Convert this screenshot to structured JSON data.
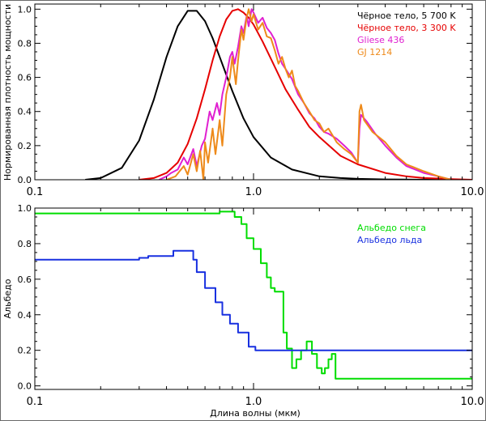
{
  "chart_data": [
    {
      "type": "line",
      "ylabel": "Нормированная плотность мощности",
      "xscale": "log",
      "xlim": [
        0.1,
        10.0
      ],
      "ylim": [
        0,
        1.03
      ],
      "x_ticks": [
        "0.1",
        "1.0",
        "10.0"
      ],
      "y_ticks": [
        "0.0",
        "0.2",
        "0.4",
        "0.6",
        "0.8",
        "1.0"
      ],
      "y_tick_values": [
        0,
        0.2,
        0.4,
        0.6,
        0.8,
        1.0
      ],
      "legend_position": "top-right",
      "series": [
        {
          "name": "Чёрное тело, 5 700 K",
          "color": "#000000",
          "x": [
            0.17,
            0.2,
            0.25,
            0.3,
            0.35,
            0.4,
            0.45,
            0.5,
            0.55,
            0.6,
            0.65,
            0.7,
            0.8,
            0.9,
            1.0,
            1.2,
            1.5,
            2.0,
            2.5,
            3.0,
            4.0,
            5.0,
            6.5,
            7.0
          ],
          "y": [
            0.0,
            0.01,
            0.07,
            0.23,
            0.47,
            0.72,
            0.9,
            0.99,
            0.99,
            0.93,
            0.83,
            0.72,
            0.52,
            0.36,
            0.25,
            0.13,
            0.06,
            0.02,
            0.01,
            0.005,
            0.002,
            0.001,
            0.0,
            0.0
          ]
        },
        {
          "name": "Чёрное тело, 3 300 K",
          "color": "#e60000",
          "x": [
            0.3,
            0.35,
            0.4,
            0.45,
            0.5,
            0.55,
            0.6,
            0.65,
            0.7,
            0.75,
            0.8,
            0.85,
            0.9,
            0.95,
            1.0,
            1.1,
            1.2,
            1.4,
            1.6,
            1.8,
            2.0,
            2.5,
            3.0,
            4.0,
            5.0,
            6.0,
            7.0,
            8.0,
            10.0
          ],
          "y": [
            0.0,
            0.01,
            0.04,
            0.1,
            0.21,
            0.36,
            0.53,
            0.7,
            0.84,
            0.94,
            0.99,
            1.0,
            0.98,
            0.95,
            0.91,
            0.81,
            0.71,
            0.53,
            0.41,
            0.31,
            0.25,
            0.14,
            0.09,
            0.04,
            0.02,
            0.01,
            0.007,
            0.004,
            0.0
          ]
        },
        {
          "name": "Gliese 436",
          "color": "#e020d0",
          "x": [
            0.37,
            0.4,
            0.42,
            0.45,
            0.48,
            0.5,
            0.53,
            0.55,
            0.58,
            0.6,
            0.63,
            0.65,
            0.68,
            0.7,
            0.72,
            0.75,
            0.78,
            0.8,
            0.82,
            0.85,
            0.88,
            0.9,
            0.93,
            0.95,
            0.98,
            1.0,
            1.05,
            1.1,
            1.15,
            1.2,
            1.25,
            1.3,
            1.35,
            1.4,
            1.45,
            1.5,
            1.6,
            1.7,
            1.8,
            1.9,
            2.0,
            2.1,
            2.2,
            2.4,
            2.6,
            2.8,
            3.0,
            3.05,
            3.1,
            3.3,
            3.6,
            4.0,
            4.5,
            5.0,
            6.0,
            7.0,
            8.0
          ],
          "y": [
            0.0,
            0.02,
            0.04,
            0.06,
            0.13,
            0.09,
            0.18,
            0.08,
            0.2,
            0.24,
            0.4,
            0.35,
            0.45,
            0.38,
            0.5,
            0.6,
            0.72,
            0.75,
            0.68,
            0.78,
            0.9,
            0.86,
            0.96,
            0.9,
            1.0,
            0.98,
            0.92,
            0.95,
            0.89,
            0.86,
            0.82,
            0.74,
            0.68,
            0.65,
            0.62,
            0.59,
            0.5,
            0.45,
            0.39,
            0.36,
            0.31,
            0.28,
            0.27,
            0.24,
            0.2,
            0.16,
            0.1,
            0.3,
            0.38,
            0.34,
            0.27,
            0.2,
            0.13,
            0.08,
            0.04,
            0.02,
            0.0
          ]
        },
        {
          "name": "GJ 1214",
          "color": "#ee8a1a",
          "x": [
            0.4,
            0.44,
            0.48,
            0.5,
            0.53,
            0.55,
            0.57,
            0.59,
            0.6,
            0.62,
            0.65,
            0.67,
            0.7,
            0.72,
            0.75,
            0.78,
            0.8,
            0.83,
            0.85,
            0.88,
            0.9,
            0.93,
            0.95,
            0.98,
            1.0,
            1.05,
            1.1,
            1.15,
            1.2,
            1.25,
            1.3,
            1.35,
            1.4,
            1.45,
            1.5,
            1.55,
            1.6,
            1.7,
            1.8,
            1.9,
            2.0,
            2.1,
            2.2,
            2.4,
            2.6,
            2.8,
            3.0,
            3.05,
            3.1,
            3.2,
            3.5,
            4.0,
            4.5,
            5.0,
            6.0,
            7.0,
            8.0
          ],
          "y": [
            0.0,
            0.02,
            0.08,
            0.03,
            0.15,
            0.05,
            0.17,
            0.0,
            0.22,
            0.1,
            0.3,
            0.15,
            0.35,
            0.2,
            0.5,
            0.6,
            0.72,
            0.56,
            0.7,
            0.88,
            0.82,
            0.95,
            1.0,
            0.93,
            0.97,
            0.88,
            0.92,
            0.84,
            0.83,
            0.76,
            0.68,
            0.72,
            0.65,
            0.6,
            0.64,
            0.55,
            0.52,
            0.45,
            0.4,
            0.35,
            0.33,
            0.28,
            0.3,
            0.22,
            0.18,
            0.15,
            0.1,
            0.4,
            0.44,
            0.35,
            0.28,
            0.22,
            0.14,
            0.09,
            0.05,
            0.02,
            0.0
          ]
        }
      ]
    },
    {
      "type": "line",
      "xlabel": "Длина волны (мкм)",
      "ylabel": "Альбедо",
      "xscale": "log",
      "xlim": [
        0.1,
        10.0
      ],
      "ylim": [
        -0.02,
        1.0
      ],
      "x_ticks": [
        "0.1",
        "1.0",
        "10.0"
      ],
      "y_ticks": [
        "0.0",
        "0.2",
        "0.4",
        "0.6",
        "0.8",
        "1.0"
      ],
      "y_tick_values": [
        0,
        0.2,
        0.4,
        0.6,
        0.8,
        1.0
      ],
      "legend_position": "top-right",
      "series": [
        {
          "name": "Альбедо снега",
          "color": "#00dd00",
          "x": [
            0.1,
            0.7,
            0.7,
            0.82,
            0.82,
            0.88,
            0.88,
            0.93,
            0.93,
            1.0,
            1.0,
            1.08,
            1.08,
            1.15,
            1.15,
            1.2,
            1.2,
            1.25,
            1.25,
            1.37,
            1.37,
            1.42,
            1.42,
            1.5,
            1.5,
            1.57,
            1.57,
            1.65,
            1.65,
            1.75,
            1.75,
            1.85,
            1.85,
            1.95,
            1.95,
            2.05,
            2.05,
            2.12,
            2.12,
            2.2,
            2.2,
            2.28,
            2.28,
            2.37,
            2.37,
            10.0
          ],
          "y": [
            0.97,
            0.97,
            0.98,
            0.98,
            0.95,
            0.95,
            0.91,
            0.91,
            0.83,
            0.83,
            0.77,
            0.77,
            0.69,
            0.69,
            0.61,
            0.61,
            0.55,
            0.55,
            0.53,
            0.53,
            0.3,
            0.3,
            0.21,
            0.21,
            0.1,
            0.1,
            0.15,
            0.15,
            0.2,
            0.2,
            0.25,
            0.25,
            0.18,
            0.18,
            0.1,
            0.1,
            0.07,
            0.07,
            0.1,
            0.1,
            0.15,
            0.15,
            0.18,
            0.18,
            0.04,
            0.04
          ]
        },
        {
          "name": "Альбедо льда",
          "color": "#1830e0",
          "x": [
            0.1,
            0.3,
            0.3,
            0.33,
            0.33,
            0.43,
            0.43,
            0.53,
            0.53,
            0.55,
            0.55,
            0.6,
            0.6,
            0.67,
            0.67,
            0.72,
            0.72,
            0.78,
            0.78,
            0.85,
            0.85,
            0.95,
            0.95,
            1.02,
            1.02,
            10.0
          ],
          "y": [
            0.71,
            0.71,
            0.72,
            0.72,
            0.73,
            0.73,
            0.76,
            0.76,
            0.71,
            0.71,
            0.64,
            0.64,
            0.55,
            0.55,
            0.47,
            0.47,
            0.4,
            0.4,
            0.35,
            0.35,
            0.3,
            0.3,
            0.22,
            0.22,
            0.2,
            0.2
          ]
        }
      ]
    }
  ]
}
